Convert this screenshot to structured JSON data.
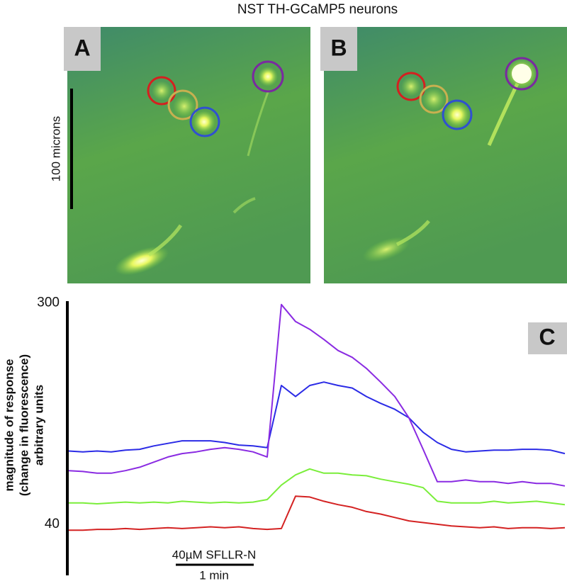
{
  "title": "NST TH-GCaMP5 neurons",
  "image_panels": [
    {
      "label": "A"
    },
    {
      "label": "B"
    }
  ],
  "scale_bar_label": "100 microns",
  "chart_data": {
    "type": "line",
    "panel_label": "C",
    "y_label": [
      "magnitude of response",
      "(change in fluorescence)",
      "arbitrary units"
    ],
    "annotations": [
      "40µM SFLLR-N",
      "1 min"
    ],
    "ylim": [
      -20,
      302
    ],
    "yticks": [
      40,
      300
    ],
    "series": [
      {
        "color": "#2b2be6",
        "values": [
          126,
          125,
          126,
          125,
          127,
          128,
          132,
          135,
          138,
          138,
          138,
          136,
          133,
          132,
          130,
          203,
          190,
          203,
          207,
          203,
          200,
          190,
          182,
          175,
          165,
          148,
          136,
          128,
          125,
          126,
          127,
          127,
          128,
          128,
          127,
          123
        ]
      },
      {
        "color": "#8a2be2",
        "values": [
          103,
          102,
          100,
          100,
          103,
          107,
          113,
          119,
          123,
          125,
          128,
          130,
          128,
          125,
          119,
          298,
          278,
          269,
          257,
          244,
          236,
          223,
          207,
          190,
          165,
          128,
          90,
          90,
          92,
          90,
          90,
          88,
          90,
          88,
          88,
          85
        ]
      },
      {
        "color": "#7aee3a",
        "values": [
          65,
          65,
          64,
          65,
          66,
          65,
          66,
          65,
          67,
          66,
          65,
          66,
          65,
          66,
          69,
          86,
          98,
          105,
          100,
          100,
          98,
          97,
          93,
          90,
          87,
          83,
          67,
          65,
          65,
          65,
          67,
          65,
          66,
          67,
          65,
          63
        ]
      },
      {
        "color": "#d42222",
        "values": [
          33,
          33,
          34,
          34,
          35,
          34,
          35,
          36,
          35,
          36,
          37,
          36,
          37,
          35,
          34,
          35,
          73,
          72,
          67,
          63,
          60,
          55,
          52,
          48,
          44,
          42,
          40,
          38,
          37,
          36,
          37,
          35,
          36,
          36,
          35,
          36
        ]
      }
    ]
  }
}
